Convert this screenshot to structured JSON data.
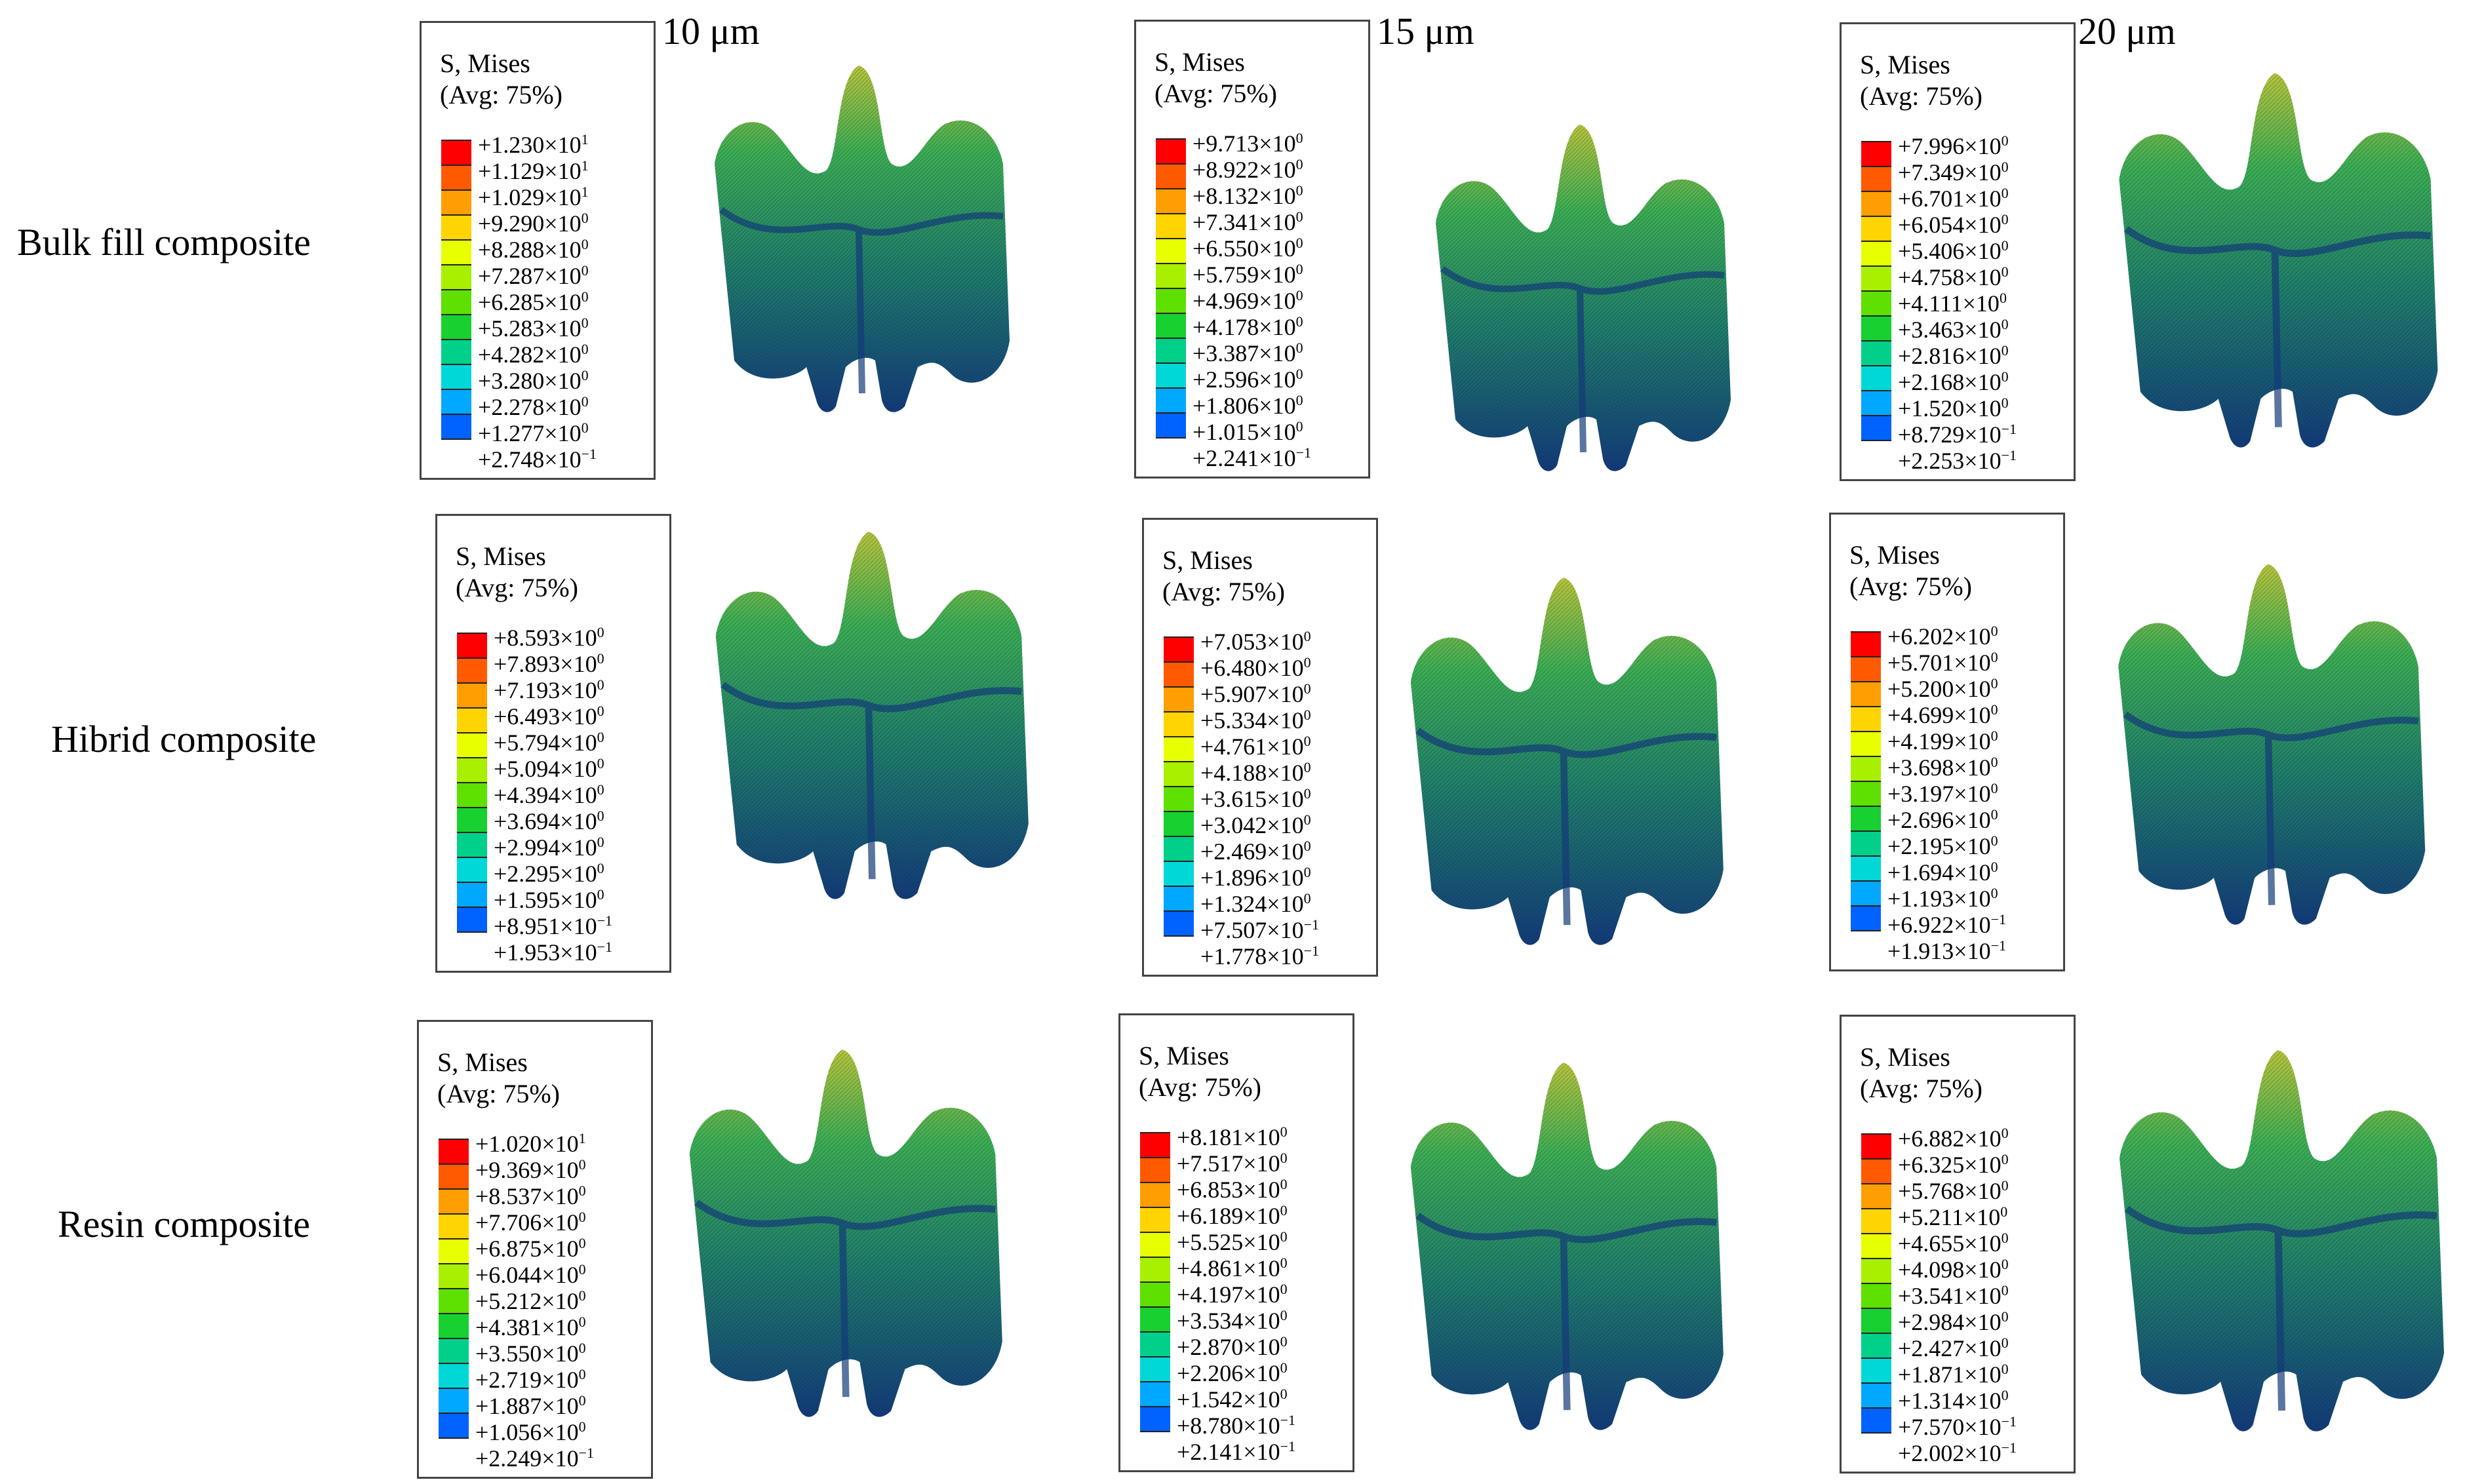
{
  "column_labels": [
    "10 μm",
    "15 μm",
    "20 μm"
  ],
  "row_labels": [
    "Bulk fill composite",
    "Hibrid composite",
    "Resin composite"
  ],
  "legend_title_line1": "S, Mises",
  "legend_title_line2": "(Avg: 75%)",
  "band_colors": [
    "#ff0000",
    "#ff5a00",
    "#ff9e00",
    "#ffd400",
    "#e8ff00",
    "#a8f000",
    "#5ee000",
    "#18d030",
    "#00d08a",
    "#00d8d8",
    "#00a8ff",
    "#0062ff",
    "#0018ff"
  ],
  "mesh_colors": {
    "dark": "#123a78",
    "mid": "#1e7a6a",
    "light": "#3cae52",
    "hot": "#b8c43a"
  },
  "legends": [
    [
      {
        "m": "+1.230",
        "e": "1"
      },
      {
        "m": "+1.129",
        "e": "1"
      },
      {
        "m": "+1.029",
        "e": "1"
      },
      {
        "m": "+9.290",
        "e": "0"
      },
      {
        "m": "+8.288",
        "e": "0"
      },
      {
        "m": "+7.287",
        "e": "0"
      },
      {
        "m": "+6.285",
        "e": "0"
      },
      {
        "m": "+5.283",
        "e": "0"
      },
      {
        "m": "+4.282",
        "e": "0"
      },
      {
        "m": "+3.280",
        "e": "0"
      },
      {
        "m": "+2.278",
        "e": "0"
      },
      {
        "m": "+1.277",
        "e": "0"
      },
      {
        "m": "+2.748",
        "e": "−1"
      }
    ],
    [
      {
        "m": "+9.713",
        "e": "0"
      },
      {
        "m": "+8.922",
        "e": "0"
      },
      {
        "m": "+8.132",
        "e": "0"
      },
      {
        "m": "+7.341",
        "e": "0"
      },
      {
        "m": "+6.550",
        "e": "0"
      },
      {
        "m": "+5.759",
        "e": "0"
      },
      {
        "m": "+4.969",
        "e": "0"
      },
      {
        "m": "+4.178",
        "e": "0"
      },
      {
        "m": "+3.387",
        "e": "0"
      },
      {
        "m": "+2.596",
        "e": "0"
      },
      {
        "m": "+1.806",
        "e": "0"
      },
      {
        "m": "+1.015",
        "e": "0"
      },
      {
        "m": "+2.241",
        "e": "−1"
      }
    ],
    [
      {
        "m": "+7.996",
        "e": "0"
      },
      {
        "m": "+7.349",
        "e": "0"
      },
      {
        "m": "+6.701",
        "e": "0"
      },
      {
        "m": "+6.054",
        "e": "0"
      },
      {
        "m": "+5.406",
        "e": "0"
      },
      {
        "m": "+4.758",
        "e": "0"
      },
      {
        "m": "+4.111",
        "e": "0"
      },
      {
        "m": "+3.463",
        "e": "0"
      },
      {
        "m": "+2.816",
        "e": "0"
      },
      {
        "m": "+2.168",
        "e": "0"
      },
      {
        "m": "+1.520",
        "e": "0"
      },
      {
        "m": "+8.729",
        "e": "−1"
      },
      {
        "m": "+2.253",
        "e": "−1"
      }
    ],
    [
      {
        "m": "+8.593",
        "e": "0"
      },
      {
        "m": "+7.893",
        "e": "0"
      },
      {
        "m": "+7.193",
        "e": "0"
      },
      {
        "m": "+6.493",
        "e": "0"
      },
      {
        "m": "+5.794",
        "e": "0"
      },
      {
        "m": "+5.094",
        "e": "0"
      },
      {
        "m": "+4.394",
        "e": "0"
      },
      {
        "m": "+3.694",
        "e": "0"
      },
      {
        "m": "+2.994",
        "e": "0"
      },
      {
        "m": "+2.295",
        "e": "0"
      },
      {
        "m": "+1.595",
        "e": "0"
      },
      {
        "m": "+8.951",
        "e": "−1"
      },
      {
        "m": "+1.953",
        "e": "−1"
      }
    ],
    [
      {
        "m": "+7.053",
        "e": "0"
      },
      {
        "m": "+6.480",
        "e": "0"
      },
      {
        "m": "+5.907",
        "e": "0"
      },
      {
        "m": "+5.334",
        "e": "0"
      },
      {
        "m": "+4.761",
        "e": "0"
      },
      {
        "m": "+4.188",
        "e": "0"
      },
      {
        "m": "+3.615",
        "e": "0"
      },
      {
        "m": "+3.042",
        "e": "0"
      },
      {
        "m": "+2.469",
        "e": "0"
      },
      {
        "m": "+1.896",
        "e": "0"
      },
      {
        "m": "+1.324",
        "e": "0"
      },
      {
        "m": "+7.507",
        "e": "−1"
      },
      {
        "m": "+1.778",
        "e": "−1"
      }
    ],
    [
      {
        "m": "+6.202",
        "e": "0"
      },
      {
        "m": "+5.701",
        "e": "0"
      },
      {
        "m": "+5.200",
        "e": "0"
      },
      {
        "m": "+4.699",
        "e": "0"
      },
      {
        "m": "+4.199",
        "e": "0"
      },
      {
        "m": "+3.698",
        "e": "0"
      },
      {
        "m": "+3.197",
        "e": "0"
      },
      {
        "m": "+2.696",
        "e": "0"
      },
      {
        "m": "+2.195",
        "e": "0"
      },
      {
        "m": "+1.694",
        "e": "0"
      },
      {
        "m": "+1.193",
        "e": "0"
      },
      {
        "m": "+6.922",
        "e": "−1"
      },
      {
        "m": "+1.913",
        "e": "−1"
      }
    ],
    [
      {
        "m": "+1.020",
        "e": "1"
      },
      {
        "m": "+9.369",
        "e": "0"
      },
      {
        "m": "+8.537",
        "e": "0"
      },
      {
        "m": "+7.706",
        "e": "0"
      },
      {
        "m": "+6.875",
        "e": "0"
      },
      {
        "m": "+6.044",
        "e": "0"
      },
      {
        "m": "+5.212",
        "e": "0"
      },
      {
        "m": "+4.381",
        "e": "0"
      },
      {
        "m": "+3.550",
        "e": "0"
      },
      {
        "m": "+2.719",
        "e": "0"
      },
      {
        "m": "+1.887",
        "e": "0"
      },
      {
        "m": "+1.056",
        "e": "0"
      },
      {
        "m": "+2.249",
        "e": "−1"
      }
    ],
    [
      {
        "m": "+8.181",
        "e": "0"
      },
      {
        "m": "+7.517",
        "e": "0"
      },
      {
        "m": "+6.853",
        "e": "0"
      },
      {
        "m": "+6.189",
        "e": "0"
      },
      {
        "m": "+5.525",
        "e": "0"
      },
      {
        "m": "+4.861",
        "e": "0"
      },
      {
        "m": "+4.197",
        "e": "0"
      },
      {
        "m": "+3.534",
        "e": "0"
      },
      {
        "m": "+2.870",
        "e": "0"
      },
      {
        "m": "+2.206",
        "e": "0"
      },
      {
        "m": "+1.542",
        "e": "0"
      },
      {
        "m": "+8.780",
        "e": "−1"
      },
      {
        "m": "+2.141",
        "e": "−1"
      }
    ],
    [
      {
        "m": "+6.882",
        "e": "0"
      },
      {
        "m": "+6.325",
        "e": "0"
      },
      {
        "m": "+5.768",
        "e": "0"
      },
      {
        "m": "+5.211",
        "e": "0"
      },
      {
        "m": "+4.655",
        "e": "0"
      },
      {
        "m": "+4.098",
        "e": "0"
      },
      {
        "m": "+3.541",
        "e": "0"
      },
      {
        "m": "+2.984",
        "e": "0"
      },
      {
        "m": "+2.427",
        "e": "0"
      },
      {
        "m": "+1.871",
        "e": "0"
      },
      {
        "m": "+1.314",
        "e": "0"
      },
      {
        "m": "+7.570",
        "e": "−1"
      },
      {
        "m": "+2.002",
        "e": "−1"
      }
    ]
  ]
}
